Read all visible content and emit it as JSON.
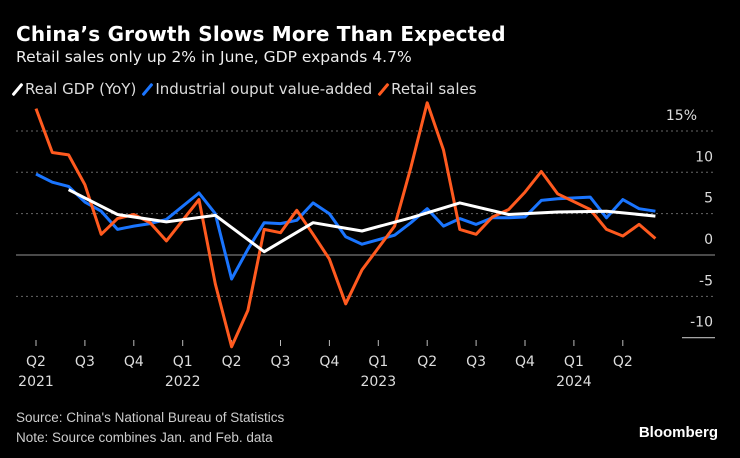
{
  "chart_data": {
    "type": "line",
    "title": "China’s Growth Slows More Than Expected",
    "subtitle": "Retail sales only up 2% in June, GDP expands 4.7%",
    "ylim": [
      -10,
      18
    ],
    "yticks": [
      15,
      10,
      5,
      0,
      -5,
      -10
    ],
    "ytick_labels": [
      "15%",
      "10",
      "5",
      "0",
      "-5",
      "-10"
    ],
    "grid": true,
    "legend": "top-left",
    "xticks": [
      {
        "x": "2021-04",
        "label": "Q2",
        "year": "2021"
      },
      {
        "x": "2021-07",
        "label": "Q3",
        "year": ""
      },
      {
        "x": "2021-10",
        "label": "Q4",
        "year": ""
      },
      {
        "x": "2022-01",
        "label": "Q1",
        "year": "2022"
      },
      {
        "x": "2022-04",
        "label": "Q2",
        "year": ""
      },
      {
        "x": "2022-07",
        "label": "Q3",
        "year": ""
      },
      {
        "x": "2022-10",
        "label": "Q4",
        "year": ""
      },
      {
        "x": "2023-01",
        "label": "Q1",
        "year": "2023"
      },
      {
        "x": "2023-04",
        "label": "Q2",
        "year": ""
      },
      {
        "x": "2023-07",
        "label": "Q3",
        "year": ""
      },
      {
        "x": "2023-10",
        "label": "Q4",
        "year": ""
      },
      {
        "x": "2024-01",
        "label": "Q1",
        "year": "2024"
      },
      {
        "x": "2024-04",
        "label": "Q2",
        "year": ""
      }
    ],
    "series": [
      {
        "name": "Real GDP (YoY)",
        "color": "#ffffff",
        "x": [
          "2021-06",
          "2021-09",
          "2021-12",
          "2022-03",
          "2022-06",
          "2022-09",
          "2022-12",
          "2023-03",
          "2023-06",
          "2023-09",
          "2023-12",
          "2024-03",
          "2024-06"
        ],
        "values": [
          7.9,
          4.9,
          4.0,
          4.8,
          0.4,
          3.9,
          2.9,
          4.5,
          6.3,
          4.9,
          5.2,
          5.3,
          4.7
        ]
      },
      {
        "name": "Industrial ouput value-added",
        "color": "#1a75ff",
        "x": [
          "2021-04",
          "2021-05",
          "2021-06",
          "2021-07",
          "2021-08",
          "2021-09",
          "2021-10",
          "2021-11",
          "2021-12",
          "2022-02",
          "2022-03",
          "2022-04",
          "2022-05",
          "2022-06",
          "2022-07",
          "2022-08",
          "2022-09",
          "2022-10",
          "2022-11",
          "2022-12",
          "2023-02",
          "2023-03",
          "2023-04",
          "2023-05",
          "2023-06",
          "2023-07",
          "2023-08",
          "2023-09",
          "2023-10",
          "2023-11",
          "2023-12",
          "2024-02",
          "2024-03",
          "2024-04",
          "2024-05",
          "2024-06"
        ],
        "values": [
          9.8,
          8.8,
          8.3,
          6.4,
          5.3,
          3.1,
          3.5,
          3.8,
          4.3,
          7.5,
          5.0,
          -2.9,
          0.7,
          3.9,
          3.8,
          4.2,
          6.3,
          5.0,
          2.2,
          1.3,
          2.4,
          3.9,
          5.6,
          3.5,
          4.4,
          3.7,
          4.5,
          4.5,
          4.6,
          6.6,
          6.8,
          7.0,
          4.5,
          6.7,
          5.6,
          5.3
        ]
      },
      {
        "name": "Retail sales",
        "color": "#ff5a1f",
        "x": [
          "2021-04",
          "2021-05",
          "2021-06",
          "2021-07",
          "2021-08",
          "2021-09",
          "2021-10",
          "2021-11",
          "2021-12",
          "2022-02",
          "2022-03",
          "2022-04",
          "2022-05",
          "2022-06",
          "2022-07",
          "2022-08",
          "2022-09",
          "2022-10",
          "2022-11",
          "2022-12",
          "2023-02",
          "2023-03",
          "2023-04",
          "2023-05",
          "2023-06",
          "2023-07",
          "2023-08",
          "2023-09",
          "2023-10",
          "2023-11",
          "2023-12",
          "2024-02",
          "2024-03",
          "2024-04",
          "2024-05",
          "2024-06"
        ],
        "values": [
          17.7,
          12.4,
          12.1,
          8.5,
          2.5,
          4.4,
          4.9,
          3.9,
          1.7,
          6.7,
          -3.5,
          -11.1,
          -6.7,
          3.1,
          2.7,
          5.4,
          2.5,
          -0.5,
          -5.9,
          -1.8,
          3.5,
          10.6,
          18.4,
          12.7,
          3.1,
          2.5,
          4.6,
          5.5,
          7.6,
          10.1,
          7.4,
          5.5,
          3.1,
          2.3,
          3.7,
          2.0
        ]
      }
    ]
  },
  "footer": {
    "source": "Source: China's National Bureau of Statistics",
    "note": "Note: Source combines Jan. and Feb. data",
    "logo": "Bloomberg"
  }
}
